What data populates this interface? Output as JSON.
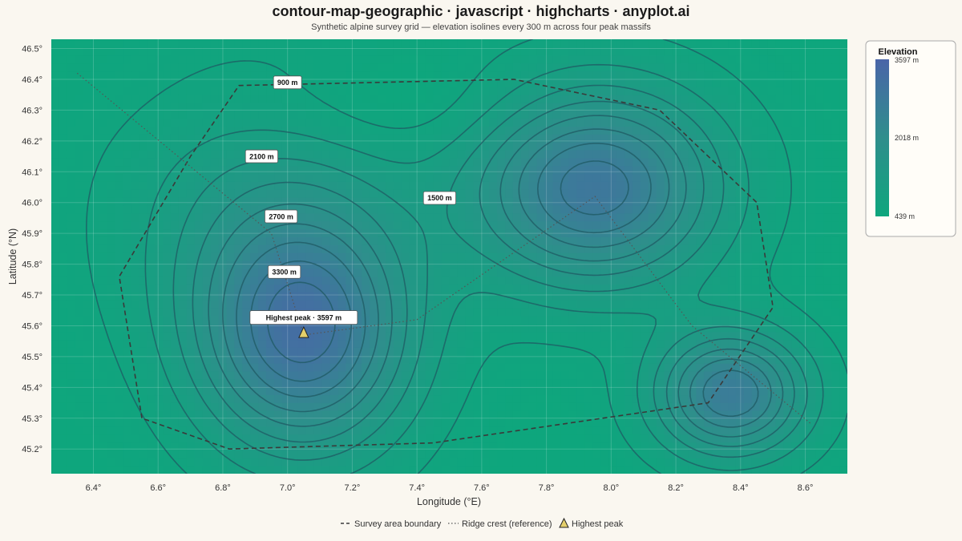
{
  "title": "contour-map-geographic · javascript · highcharts · anyplot.ai",
  "subtitle": "Synthetic alpine survey grid — elevation isolines every 300 m across four peak massifs",
  "chart_data": {
    "type": "heatmap",
    "subtype": "contour",
    "xlabel": "Longitude (°E)",
    "ylabel": "Latitude (°N)",
    "xlim": [
      6.27,
      8.73
    ],
    "ylim": [
      45.12,
      46.53
    ],
    "xticks": [
      "6.4°",
      "6.6°",
      "6.8°",
      "7.0°",
      "7.2°",
      "7.4°",
      "7.6°",
      "7.8°",
      "8.0°",
      "8.2°",
      "8.4°",
      "8.6°"
    ],
    "xtick_values": [
      6.4,
      6.6,
      6.8,
      7.0,
      7.2,
      7.4,
      7.6,
      7.8,
      8.0,
      8.2,
      8.4,
      8.6
    ],
    "yticks": [
      "46.5°",
      "46.4°",
      "46.3°",
      "46.2°",
      "46.1°",
      "46.0°",
      "45.9°",
      "45.8°",
      "45.7°",
      "45.6°",
      "45.5°",
      "45.4°",
      "45.3°",
      "45.2°"
    ],
    "ytick_values": [
      46.5,
      46.4,
      46.3,
      46.2,
      46.1,
      46.0,
      45.9,
      45.8,
      45.7,
      45.6,
      45.5,
      45.4,
      45.3,
      45.2
    ],
    "grid": true,
    "contour_interval_m": 300,
    "contour_levels": [
      600,
      900,
      1200,
      1500,
      1800,
      2100,
      2400,
      2700,
      3000,
      3300
    ],
    "contour_labels": [
      {
        "text": "900 m",
        "lon": 7.0,
        "lat": 46.39
      },
      {
        "text": "2100 m",
        "lon": 6.92,
        "lat": 46.15
      },
      {
        "text": "1500 m",
        "lon": 7.47,
        "lat": 46.015
      },
      {
        "text": "2700 m",
        "lon": 6.98,
        "lat": 45.955
      },
      {
        "text": "3300 m",
        "lon": 6.99,
        "lat": 45.775
      }
    ],
    "massifs": [
      {
        "lon": 7.05,
        "lat": 45.57,
        "peak": 3597
      },
      {
        "lon": 7.95,
        "lat": 46.05,
        "peak": 2950
      },
      {
        "lon": 8.37,
        "lat": 45.38,
        "peak": 2700
      },
      {
        "lon": 6.95,
        "lat": 45.95,
        "peak": 2400
      }
    ],
    "highest_peak": {
      "label": "Highest peak · 3597 m",
      "lon": 7.05,
      "lat": 45.575,
      "elevation": 3597
    },
    "survey_boundary": [
      [
        6.55,
        45.3
      ],
      [
        6.48,
        45.76
      ],
      [
        6.7,
        46.15
      ],
      [
        6.85,
        46.38
      ],
      [
        7.7,
        46.4
      ],
      [
        8.15,
        46.3
      ],
      [
        8.45,
        46.0
      ],
      [
        8.5,
        45.66
      ],
      [
        8.3,
        45.35
      ],
      [
        7.45,
        45.22
      ],
      [
        6.82,
        45.2
      ],
      [
        6.55,
        45.3
      ]
    ],
    "ridge_crest": [
      [
        6.35,
        46.42
      ],
      [
        6.95,
        45.9
      ],
      [
        7.05,
        45.57
      ],
      [
        7.4,
        45.62
      ],
      [
        7.95,
        46.02
      ],
      [
        8.25,
        45.6
      ],
      [
        8.62,
        45.28
      ]
    ],
    "colorbar": {
      "title": "Elevation",
      "max_label": "3597 m",
      "mid_label": "2018 m",
      "min_label": "439 m",
      "min": 439,
      "max": 3597
    },
    "legend": [
      {
        "name": "Survey area boundary",
        "style": "dashed"
      },
      {
        "name": "Ridge crest (reference)",
        "style": "dotted"
      },
      {
        "name": "Highest peak",
        "style": "triangle"
      }
    ],
    "colors": {
      "low": "#0ea67d",
      "mid": "#2f8e8c",
      "high": "#4a65a8",
      "contour_line": "#1f5a63",
      "boundary": "#3a3a3a",
      "ridge": "#555555",
      "peak_marker": "#e4cf6b",
      "background": "#faf7f0"
    }
  }
}
